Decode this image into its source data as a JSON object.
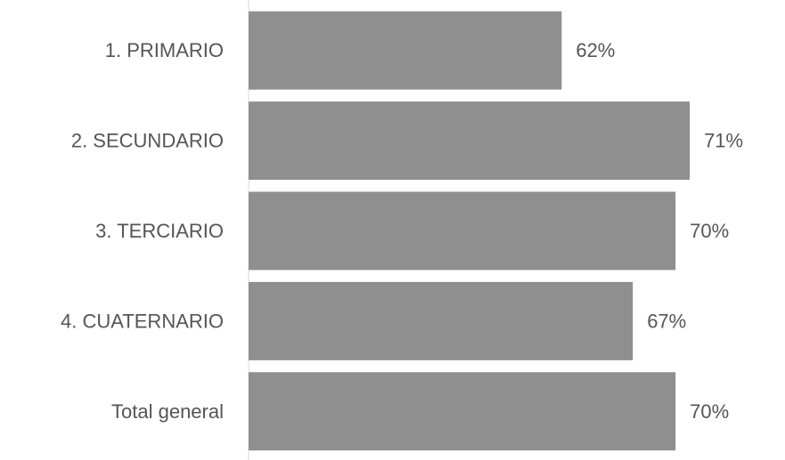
{
  "chart_data": {
    "type": "bar",
    "orientation": "horizontal",
    "categories": [
      "1. PRIMARIO",
      "2. SECUNDARIO",
      "3. TERCIARIO",
      "4. CUATERNARIO",
      "Total general"
    ],
    "values": [
      62,
      71,
      70,
      67,
      70
    ],
    "value_labels": [
      "62%",
      "71%",
      "70%",
      "67%",
      "70%"
    ],
    "xlim": [
      40,
      73.5
    ],
    "grid": false,
    "legend": "none",
    "colors": {
      "bar": "#8f8f8f",
      "text": "#555555",
      "axis": "#d9d9d9"
    }
  }
}
